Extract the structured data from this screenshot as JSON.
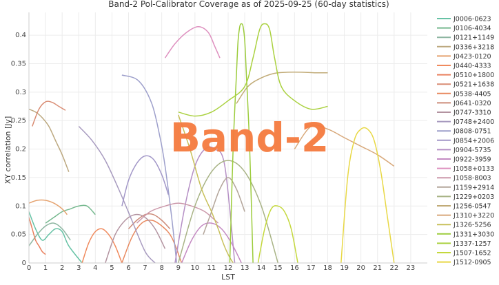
{
  "chart_data": {
    "type": "line",
    "title": "Band-2 Pol-Calibrator Coverage as of 2025-09-25 (60-day statistics)",
    "xlabel": "LST",
    "ylabel": "XY correlation [Jy]",
    "xlim": [
      0,
      24
    ],
    "ylim": [
      0,
      0.44
    ],
    "x_ticks": [
      0,
      1,
      2,
      3,
      4,
      5,
      6,
      7,
      8,
      9,
      10,
      11,
      12,
      13,
      14,
      15,
      16,
      17,
      18,
      19,
      20,
      21,
      22,
      23
    ],
    "y_ticks": [
      0,
      0.05,
      0.1,
      0.15,
      0.2,
      0.25,
      0.3,
      0.35,
      0.4
    ],
    "grid": true,
    "legend_position": "right",
    "watermark": "Band-2",
    "watermark_color": "#f47a3e",
    "series": [
      {
        "name": "J0006-0623",
        "color": "#66c2a5",
        "x": [
          0,
          0.4,
          0.8,
          1.2,
          1.6,
          2.0,
          2.4,
          3.2
        ],
        "y": [
          0.09,
          0.06,
          0.04,
          0.05,
          0.06,
          0.055,
          0.03,
          0.0
        ]
      },
      {
        "name": "J0106-4034",
        "color": "#76b98f",
        "x": [
          1.0,
          1.5,
          2.0,
          2.5,
          3.0,
          3.5,
          4.0
        ],
        "y": [
          0.07,
          0.08,
          0.09,
          0.095,
          0.1,
          0.1,
          0.085
        ]
      },
      {
        "name": "J0121+1149",
        "color": "#8db6a1",
        "x": [
          0,
          0.5,
          1.0,
          1.5,
          2.0,
          2.5
        ],
        "y": [
          0.03,
          0.05,
          0.065,
          0.07,
          0.06,
          0.04
        ]
      },
      {
        "name": "J0336+3218",
        "color": "#bca87f",
        "x": [
          0,
          0.4,
          0.8,
          1.2,
          1.6,
          2.0,
          2.4
        ],
        "y": [
          0.27,
          0.265,
          0.255,
          0.24,
          0.215,
          0.19,
          0.16
        ]
      },
      {
        "name": "J0423-0120",
        "color": "#e5a26f",
        "x": [
          0,
          0.5,
          1.0,
          1.5,
          2.0,
          2.3
        ],
        "y": [
          0.105,
          0.11,
          0.11,
          0.105,
          0.095,
          0.085
        ]
      },
      {
        "name": "J0440-4333",
        "color": "#f08a5d",
        "x": [
          3.2,
          3.6,
          4.0,
          4.4,
          4.8,
          5.2,
          5.6
        ],
        "y": [
          0.0,
          0.035,
          0.055,
          0.06,
          0.05,
          0.03,
          0.0
        ]
      },
      {
        "name": "J0510+1800",
        "color": "#e9805e",
        "x": [
          0,
          0.2,
          0.4,
          0.6,
          0.8,
          1.0
        ],
        "y": [
          0.08,
          0.06,
          0.04,
          0.03,
          0.02,
          0.015
        ]
      },
      {
        "name": "J0521+1638",
        "color": "#d98c73",
        "x": [
          0.2,
          0.6,
          1.0,
          1.4,
          1.8,
          2.2
        ],
        "y": [
          0.24,
          0.27,
          0.283,
          0.282,
          0.275,
          0.268
        ]
      },
      {
        "name": "J0538-4405",
        "color": "#e8895f",
        "x": [
          5.6,
          6.2,
          6.8,
          7.4,
          8.0,
          8.6,
          9.2
        ],
        "y": [
          0.0,
          0.045,
          0.07,
          0.075,
          0.065,
          0.045,
          0.0
        ]
      },
      {
        "name": "J0641-0320",
        "color": "#cd8c7a",
        "x": [
          6.0,
          6.5,
          7.0,
          7.5,
          8.0,
          8.5
        ],
        "y": [
          0.06,
          0.075,
          0.085,
          0.085,
          0.075,
          0.06
        ]
      },
      {
        "name": "J0747-3310",
        "color": "#b393a0",
        "x": [
          4.6,
          5.2,
          5.8,
          6.4,
          7.0,
          7.6,
          8.2
        ],
        "y": [
          0.0,
          0.05,
          0.075,
          0.085,
          0.08,
          0.06,
          0.025
        ]
      },
      {
        "name": "J0748+2400",
        "color": "#a79abf",
        "x": [
          3.0,
          3.8,
          4.6,
          5.4,
          6.2,
          7.0,
          7.6
        ],
        "y": [
          0.24,
          0.215,
          0.18,
          0.13,
          0.075,
          0.02,
          0.0
        ]
      },
      {
        "name": "J0808-0751",
        "color": "#9d9fcb",
        "x": [
          5.6,
          6.6,
          7.4,
          7.9,
          8.2,
          8.6,
          8.9
        ],
        "y": [
          0.33,
          0.32,
          0.28,
          0.22,
          0.17,
          0.08,
          0.0
        ]
      },
      {
        "name": "J0854+2006",
        "color": "#a297c8",
        "x": [
          5.6,
          6.0,
          6.5,
          7.0,
          7.5,
          8.0,
          8.4
        ],
        "y": [
          0.1,
          0.145,
          0.175,
          0.188,
          0.182,
          0.155,
          0.12
        ]
      },
      {
        "name": "J0904-5735",
        "color": "#b58fc5",
        "x": [
          8.8,
          9.4,
          10.0,
          10.6,
          11.2,
          11.8,
          12.4
        ],
        "y": [
          0.0,
          0.1,
          0.17,
          0.2,
          0.2,
          0.17,
          0.0
        ]
      },
      {
        "name": "J0922-3959",
        "color": "#c48ac2",
        "x": [
          9.2,
          9.8,
          10.4,
          11.0,
          11.6,
          12.2,
          12.8
        ],
        "y": [
          0.0,
          0.04,
          0.065,
          0.07,
          0.06,
          0.035,
          0.0
        ]
      },
      {
        "name": "J1058+0133",
        "color": "#de90bf",
        "x": [
          8.2,
          8.8,
          9.5,
          10.2,
          10.8,
          11.2,
          11.5
        ],
        "y": [
          0.36,
          0.385,
          0.405,
          0.415,
          0.405,
          0.38,
          0.36
        ]
      },
      {
        "name": "J1058-8003",
        "color": "#cb98aa",
        "x": [
          6.5,
          7.3,
          8.2,
          9.0,
          9.8,
          10.6,
          11.4
        ],
        "y": [
          0.07,
          0.09,
          0.1,
          0.105,
          0.1,
          0.09,
          0.07
        ]
      },
      {
        "name": "J1159+2914",
        "color": "#b3a59a",
        "x": [
          10.5,
          11.0,
          11.5,
          12.0,
          12.5,
          13.0
        ],
        "y": [
          0.05,
          0.09,
          0.13,
          0.15,
          0.13,
          0.09
        ]
      },
      {
        "name": "J1229+0203",
        "color": "#a8b385",
        "x": [
          9.0,
          10.0,
          11.0,
          12.0,
          13.0,
          14.0,
          15.0
        ],
        "y": [
          0.0,
          0.1,
          0.16,
          0.18,
          0.16,
          0.1,
          0.0
        ]
      },
      {
        "name": "J1256-0547",
        "color": "#c1ab77",
        "x": [
          12.5,
          13.2,
          14.0,
          14.8,
          15.6,
          16.4,
          17.2,
          18.0
        ],
        "y": [
          0.28,
          0.31,
          0.325,
          0.333,
          0.335,
          0.335,
          0.334,
          0.334
        ]
      },
      {
        "name": "J1310+3220",
        "color": "#d8a87a",
        "x": [
          16.0,
          17.0,
          18.0,
          19.0,
          20.0,
          21.0,
          22.0
        ],
        "y": [
          0.2,
          0.24,
          0.235,
          0.22,
          0.205,
          0.19,
          0.17
        ]
      },
      {
        "name": "J1326-5256",
        "color": "#c8c05a",
        "x": [
          9.0,
          9.7,
          10.4,
          11.0,
          11.4,
          11.7,
          12.0,
          12.3
        ],
        "y": [
          0.26,
          0.2,
          0.13,
          0.09,
          0.06,
          0.035,
          0.015,
          0.0
        ]
      },
      {
        "name": "J1331+3030",
        "color": "#9ccc3c",
        "x": [
          12.1,
          12.3,
          12.5,
          12.6,
          12.7,
          12.8,
          12.9,
          13.0,
          13.1,
          13.3,
          13.5
        ],
        "y": [
          0.0,
          0.2,
          0.33,
          0.39,
          0.415,
          0.42,
          0.415,
          0.39,
          0.33,
          0.2,
          0.0
        ]
      },
      {
        "name": "J1337-1257",
        "color": "#aad13f",
        "x": [
          9.0,
          10.0,
          11.0,
          12.0,
          13.0,
          13.5,
          13.9,
          14.2,
          14.5,
          14.8,
          15.2,
          16.0,
          17.0,
          18.0
        ],
        "y": [
          0.265,
          0.258,
          0.265,
          0.285,
          0.31,
          0.36,
          0.41,
          0.42,
          0.41,
          0.36,
          0.31,
          0.285,
          0.27,
          0.275
        ]
      },
      {
        "name": "J1507-1652",
        "color": "#c4d83c",
        "x": [
          13.8,
          14.2,
          14.6,
          15.0,
          15.4,
          15.8,
          16.2
        ],
        "y": [
          0.0,
          0.06,
          0.095,
          0.1,
          0.09,
          0.06,
          0.0
        ]
      },
      {
        "name": "J1512-0905",
        "color": "#e8d845",
        "x": [
          18.8,
          19.2,
          19.6,
          20.0,
          20.4,
          20.8,
          21.2,
          21.6,
          22.0
        ],
        "y": [
          0.0,
          0.15,
          0.215,
          0.235,
          0.235,
          0.215,
          0.16,
          0.08,
          0.0
        ]
      }
    ]
  }
}
